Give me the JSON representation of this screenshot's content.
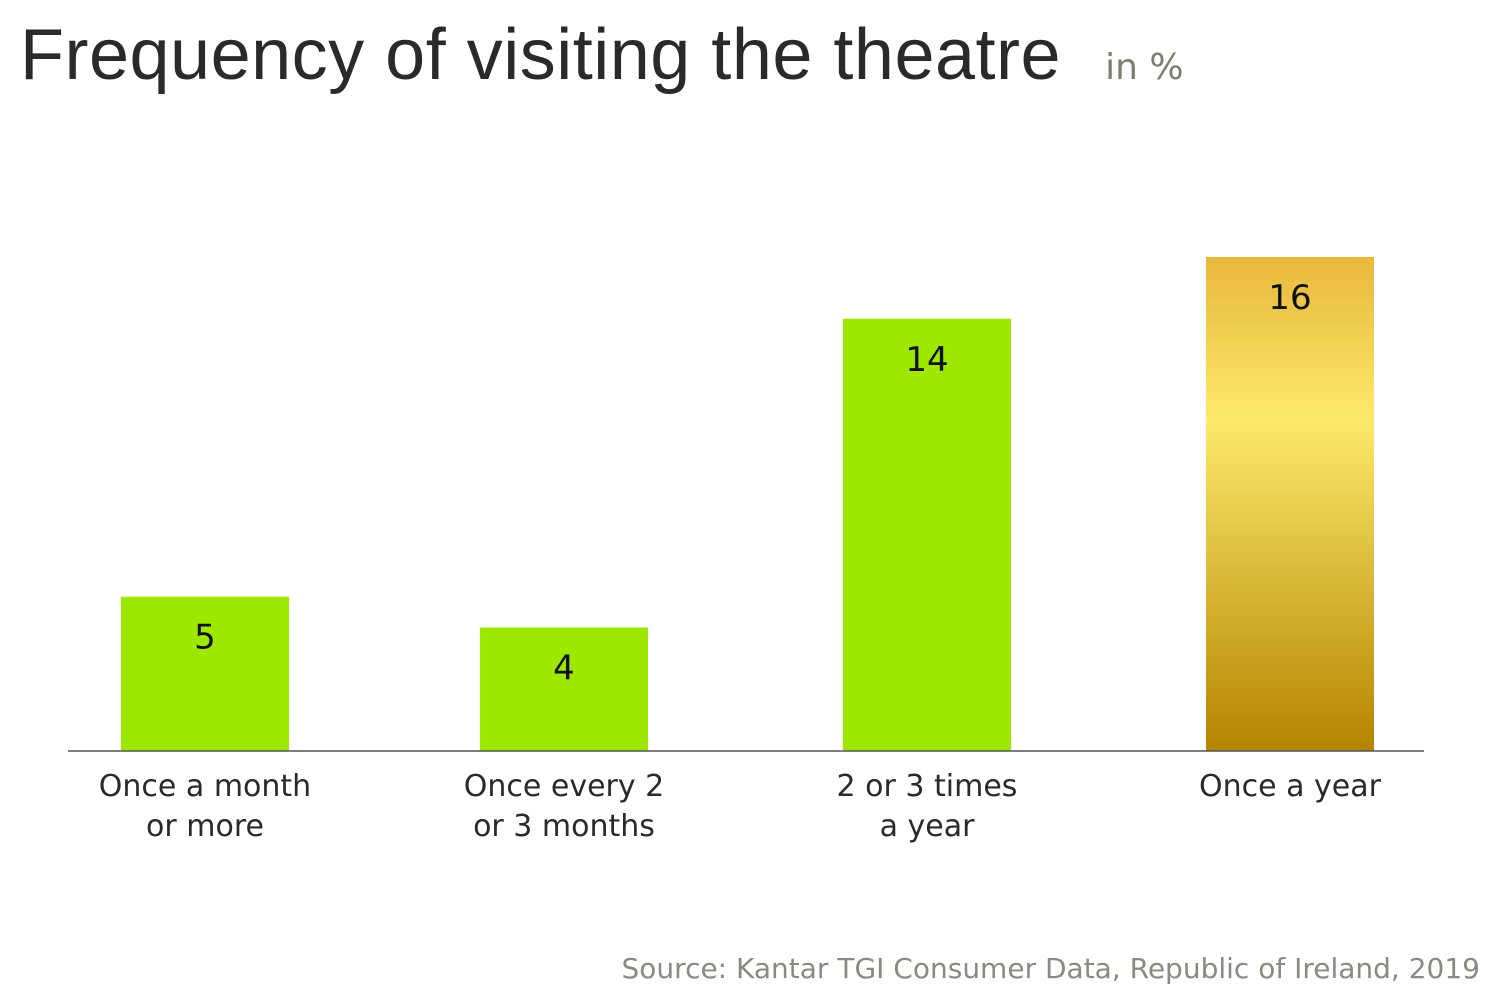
{
  "chart_data": {
    "type": "bar",
    "title": "Frequency of visiting the theatre",
    "unit": "in %",
    "categories": [
      [
        "Once a month",
        "or more"
      ],
      [
        "Once every 2",
        "or 3 months"
      ],
      [
        "2 or 3 times",
        "a year"
      ],
      [
        "Once a year"
      ]
    ],
    "values": [
      5,
      4,
      14,
      16
    ],
    "data_labels": [
      "5",
      "4",
      "14",
      "16"
    ],
    "colors": [
      "#9ee800",
      "#9ee800",
      "#9ee800",
      "gold-gradient"
    ],
    "gradient": [
      "#e8b83c",
      "#fde96a",
      "#b48400"
    ],
    "ylim": [
      0,
      16
    ],
    "grid": false,
    "source": "Source: Kantar TGI Consumer Data, Republic of Ireland, 2019"
  }
}
